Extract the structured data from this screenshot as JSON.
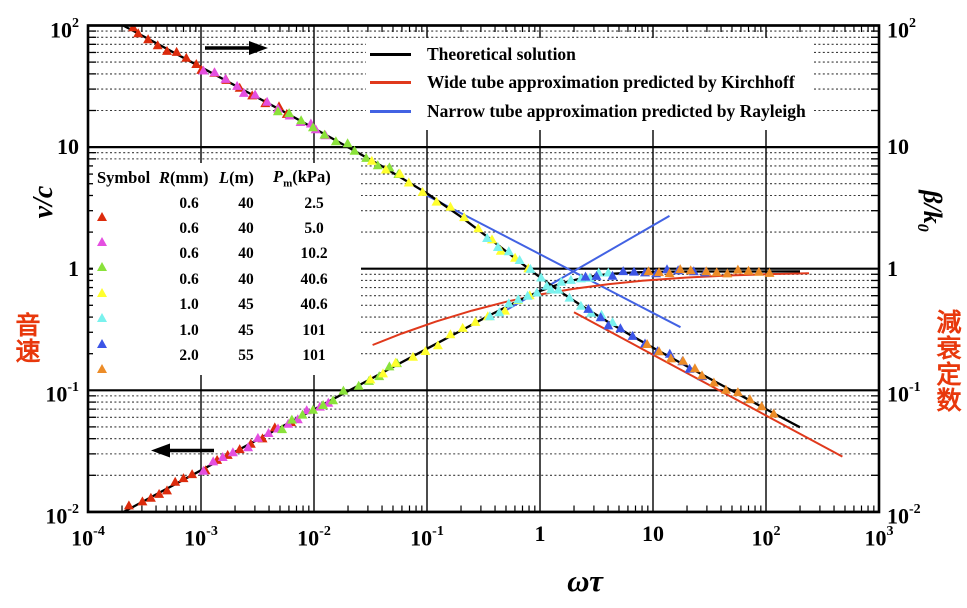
{
  "chart_data": {
    "type": "line",
    "title": "",
    "xscale": "log",
    "yscale": "log",
    "xlim": [
      0.0001,
      1000
    ],
    "ylim": [
      0.01,
      100
    ],
    "grid": true,
    "axes": {
      "x": {
        "label": "ωτ",
        "ticks": [
          {
            "m": "10",
            "e": "-4"
          },
          {
            "m": "10",
            "e": "-3"
          },
          {
            "m": "10",
            "e": "-2"
          },
          {
            "m": "10",
            "e": "-1"
          },
          {
            "m": "1",
            "e": ""
          },
          {
            "m": "10",
            "e": ""
          },
          {
            "m": "10",
            "e": "2"
          },
          {
            "m": "10",
            "e": "3"
          }
        ]
      },
      "y_left": {
        "label": "v/c",
        "label_cjk": "音速",
        "ticks": [
          {
            "m": "10",
            "e": "2"
          },
          {
            "m": "10",
            "e": ""
          },
          {
            "m": "1",
            "e": ""
          },
          {
            "m": "10",
            "e": "-1"
          },
          {
            "m": "10",
            "e": "-2"
          }
        ]
      },
      "y_right": {
        "label_base": "β/k",
        "label_sub": "0",
        "label_cjk": "減衰定数",
        "ticks": [
          {
            "m": "10",
            "e": "2"
          },
          {
            "m": "10",
            "e": ""
          },
          {
            "m": "1",
            "e": ""
          },
          {
            "m": "10",
            "e": "-1"
          },
          {
            "m": "10",
            "e": "-2"
          }
        ]
      }
    },
    "legend": [
      {
        "label": "Theoretical solution",
        "color": "#000000"
      },
      {
        "label": "Wide tube approximation predicted by Kirchhoff",
        "color": "#e0391c"
      },
      {
        "label": "Narrow tube approximation predicted by Rayleigh",
        "color": "#4262e3"
      }
    ],
    "annotations": [
      {
        "name": "upper-curve-axis-arrow",
        "direction": "right"
      },
      {
        "name": "lower-curve-axis-arrow",
        "direction": "left"
      }
    ],
    "curves": [
      {
        "name": "rayleigh-attenuation",
        "color": "#4262e3",
        "width": 2,
        "points": [
          [
            0.09,
            4.2
          ],
          [
            17.5,
            0.33
          ]
        ]
      },
      {
        "name": "rayleigh-velocity",
        "color": "#4262e3",
        "width": 2,
        "points": [
          [
            0.45,
            0.43
          ],
          [
            14,
            2.72
          ]
        ]
      },
      {
        "name": "kirchhoff-attenuation",
        "color": "#e0391c",
        "width": 2,
        "points": [
          [
            2.0,
            0.438
          ],
          [
            474,
            0.0285
          ]
        ]
      },
      {
        "name": "kirchhoff-velocity",
        "color": "#e0391c",
        "width": 2,
        "points": [
          [
            0.033,
            0.236
          ],
          [
            0.06,
            0.293
          ],
          [
            0.12,
            0.367
          ],
          [
            0.25,
            0.452
          ],
          [
            0.5,
            0.534
          ],
          [
            1,
            0.613
          ],
          [
            2,
            0.684
          ],
          [
            4,
            0.745
          ],
          [
            8,
            0.795
          ],
          [
            20,
            0.846
          ],
          [
            50,
            0.881
          ],
          [
            120,
            0.905
          ],
          [
            240,
            0.918
          ]
        ]
      },
      {
        "name": "theoretical-velocity",
        "color": "#000000",
        "width": 2.3,
        "points": [
          [
            0.00016,
            0.0088
          ],
          [
            0.0004,
            0.0139
          ],
          [
            0.001,
            0.022
          ],
          [
            0.0025,
            0.0349
          ],
          [
            0.0063,
            0.0553
          ],
          [
            0.016,
            0.0881
          ],
          [
            0.04,
            0.139
          ],
          [
            0.1,
            0.22
          ],
          [
            0.2,
            0.31
          ],
          [
            0.35,
            0.409
          ],
          [
            0.6,
            0.527
          ],
          [
            1,
            0.655
          ],
          [
            1.6,
            0.765
          ],
          [
            2.5,
            0.847
          ],
          [
            4,
            0.904
          ],
          [
            6.3,
            0.929
          ],
          [
            10,
            0.941
          ],
          [
            16,
            0.946
          ],
          [
            25,
            0.948
          ],
          [
            40,
            0.949
          ],
          [
            63,
            0.949
          ],
          [
            100,
            0.949
          ],
          [
            200,
            0.95
          ]
        ]
      },
      {
        "name": "theoretical-attenuation",
        "color": "#000000",
        "width": 2.3,
        "points": [
          [
            0.00016,
            113
          ],
          [
            0.0004,
            71.8
          ],
          [
            0.001,
            45.4
          ],
          [
            0.0025,
            28.7
          ],
          [
            0.0063,
            18.1
          ],
          [
            0.016,
            11.2
          ],
          [
            0.04,
            6.97
          ],
          [
            0.1,
            4.16
          ],
          [
            0.2,
            2.67
          ],
          [
            0.35,
            1.8
          ],
          [
            0.6,
            1.22
          ],
          [
            1,
            0.849
          ],
          [
            1.6,
            0.624
          ],
          [
            2.5,
            0.476
          ],
          [
            4,
            0.365
          ],
          [
            6.3,
            0.285
          ],
          [
            10,
            0.224
          ],
          [
            16,
            0.176
          ],
          [
            25,
            0.141
          ],
          [
            40,
            0.111
          ],
          [
            63,
            0.0884
          ],
          [
            100,
            0.0701
          ],
          [
            160,
            0.0554
          ],
          [
            200,
            0.0496
          ]
        ]
      }
    ],
    "series": [
      {
        "name": "R0.6-L40-P2.5",
        "color": "#dc2b0c",
        "r": "0.6",
        "l": "40",
        "pm": "2.5",
        "points": [
          [
            0.00024,
            0.0108,
            92.6
          ],
          [
            0.00029,
            0.0119,
            84.3
          ],
          [
            0.00035,
            0.013,
            76.7
          ],
          [
            0.00042,
            0.0143,
            70.0
          ],
          [
            0.0005,
            0.0156,
            64.2
          ],
          [
            0.0006,
            0.0171,
            58.6
          ],
          [
            0.00072,
            0.0187,
            53.5
          ],
          [
            0.00087,
            0.0206,
            48.6
          ],
          [
            0.00105,
            0.0226,
            44.3
          ],
          [
            0.00135,
            0.0256,
            39.1
          ],
          [
            0.0017,
            0.0287,
            34.8
          ],
          [
            0.0022,
            0.0327,
            30.6
          ],
          [
            0.0028,
            0.0369,
            27.1
          ],
          [
            0.0036,
            0.0418,
            23.9
          ],
          [
            0.0047,
            0.0478,
            20.9
          ],
          [
            0.006,
            0.054,
            18.5
          ]
        ]
      },
      {
        "name": "R0.6-L40-P5.0",
        "color": "#e44fe0",
        "r": "0.6",
        "l": "40",
        "pm": "5.0",
        "points": [
          [
            0.00105,
            0.0226,
            44.3
          ],
          [
            0.0013,
            0.0251,
            39.8
          ],
          [
            0.0016,
            0.0279,
            35.9
          ],
          [
            0.002,
            0.0312,
            32.1
          ],
          [
            0.0025,
            0.0349,
            28.7
          ],
          [
            0.0031,
            0.0388,
            25.8
          ],
          [
            0.0039,
            0.0435,
            23.0
          ],
          [
            0.0048,
            0.0483,
            20.7
          ],
          [
            0.006,
            0.054,
            18.5
          ],
          [
            0.0074,
            0.06,
            16.7
          ],
          [
            0.009,
            0.0661,
            15.1
          ],
          [
            0.0108,
            0.0724,
            13.8
          ],
          [
            0.013,
            0.0795,
            12.6
          ]
        ]
      },
      {
        "name": "R0.6-L40-P10.2",
        "color": "#8ae23a",
        "r": "0.6",
        "l": "40",
        "pm": "10.2",
        "points": [
          [
            0.005,
            0.0493,
            20.3
          ],
          [
            0.0062,
            0.0549,
            18.2
          ],
          [
            0.0078,
            0.0616,
            16.2
          ],
          [
            0.0098,
            0.069,
            14.5
          ],
          [
            0.0122,
            0.077,
            12.9
          ],
          [
            0.0152,
            0.0859,
            11.6
          ],
          [
            0.019,
            0.0961,
            10.4
          ],
          [
            0.0238,
            0.1075,
            9.2
          ],
          [
            0.0298,
            0.1203,
            8.2
          ],
          [
            0.0372,
            0.1344,
            7.3
          ],
          [
            0.0465,
            0.1503,
            6.5
          ],
          [
            0.055,
            0.1634,
            5.86
          ]
        ]
      },
      {
        "name": "R0.6-L40-P40.6",
        "color": "#ffff2e",
        "r": "0.6",
        "l": "40",
        "pm": "40.6",
        "points": [
          [
            0.032,
            0.125,
            7.85
          ],
          [
            0.042,
            0.143,
            6.79
          ],
          [
            0.055,
            0.163,
            5.86
          ],
          [
            0.072,
            0.186,
            5.04
          ],
          [
            0.094,
            0.212,
            4.31
          ],
          [
            0.123,
            0.241,
            3.66
          ],
          [
            0.161,
            0.276,
            3.09
          ],
          [
            0.21,
            0.318,
            2.59
          ],
          [
            0.276,
            0.364,
            2.14
          ],
          [
            0.36,
            0.414,
            1.77
          ],
          [
            0.47,
            0.47,
            1.46
          ],
          [
            0.62,
            0.534,
            1.19
          ],
          [
            0.8,
            0.597,
            0.992
          ]
        ]
      },
      {
        "name": "R1.0-L45-P40.6",
        "color": "#7af2ee",
        "r": "1.0",
        "l": "45",
        "pm": "40.6",
        "points": [
          [
            0.35,
            0.409,
            1.8
          ],
          [
            0.43,
            0.451,
            1.55
          ],
          [
            0.53,
            0.497,
            1.33
          ],
          [
            0.65,
            0.546,
            1.15
          ],
          [
            0.8,
            0.597,
            0.992
          ],
          [
            0.98,
            0.648,
            0.861
          ],
          [
            1.2,
            0.7,
            0.752
          ],
          [
            1.5,
            0.753,
            0.65
          ],
          [
            1.85,
            0.798,
            0.57
          ],
          [
            2.3,
            0.838,
            0.5
          ],
          [
            2.8,
            0.867,
            0.446
          ],
          [
            3.4,
            0.89,
            0.399
          ],
          [
            4.2,
            0.908,
            0.355
          ]
        ]
      },
      {
        "name": "R1.0-L45-P101",
        "color": "#3c55e6",
        "r": "1.0",
        "l": "45",
        "pm": "101",
        "points": [
          [
            2.6,
            0.857,
            0.465
          ],
          [
            3.3,
            0.887,
            0.406
          ],
          [
            4.2,
            0.908,
            0.355
          ],
          [
            5.3,
            0.923,
            0.313
          ],
          [
            6.7,
            0.933,
            0.276
          ],
          [
            8.5,
            0.939,
            0.244
          ],
          [
            10.8,
            0.943,
            0.216
          ],
          [
            13.7,
            0.946,
            0.191
          ],
          [
            17.4,
            0.948,
            0.169
          ],
          [
            22.0,
            0.949,
            0.15
          ],
          [
            28.0,
            0.949,
            0.133
          ]
        ]
      },
      {
        "name": "R2.0-L55-P101",
        "color": "#ec8c28",
        "r": "2.0",
        "l": "55",
        "pm": "101",
        "points": [
          [
            9.0,
            0.94,
            0.237
          ],
          [
            11.3,
            0.944,
            0.211
          ],
          [
            14.2,
            0.946,
            0.188
          ],
          [
            17.9,
            0.948,
            0.167
          ],
          [
            22.5,
            0.949,
            0.148
          ],
          [
            28.3,
            0.949,
            0.132
          ],
          [
            35.6,
            0.95,
            0.118
          ],
          [
            44.8,
            0.95,
            0.105
          ],
          [
            56.4,
            0.95,
            0.0934
          ],
          [
            71.0,
            0.95,
            0.0832
          ],
          [
            89.0,
            0.95,
            0.0743
          ],
          [
            112.0,
            0.95,
            0.0662
          ]
        ]
      }
    ]
  },
  "symbol_table": {
    "columns": [
      {
        "text": "Symbol"
      },
      {
        "var": "R",
        "unit": "(mm)"
      },
      {
        "var": "L",
        "unit": "(m)"
      },
      {
        "var": "P",
        "sub": "m",
        "unit": "(kPa)"
      }
    ]
  }
}
